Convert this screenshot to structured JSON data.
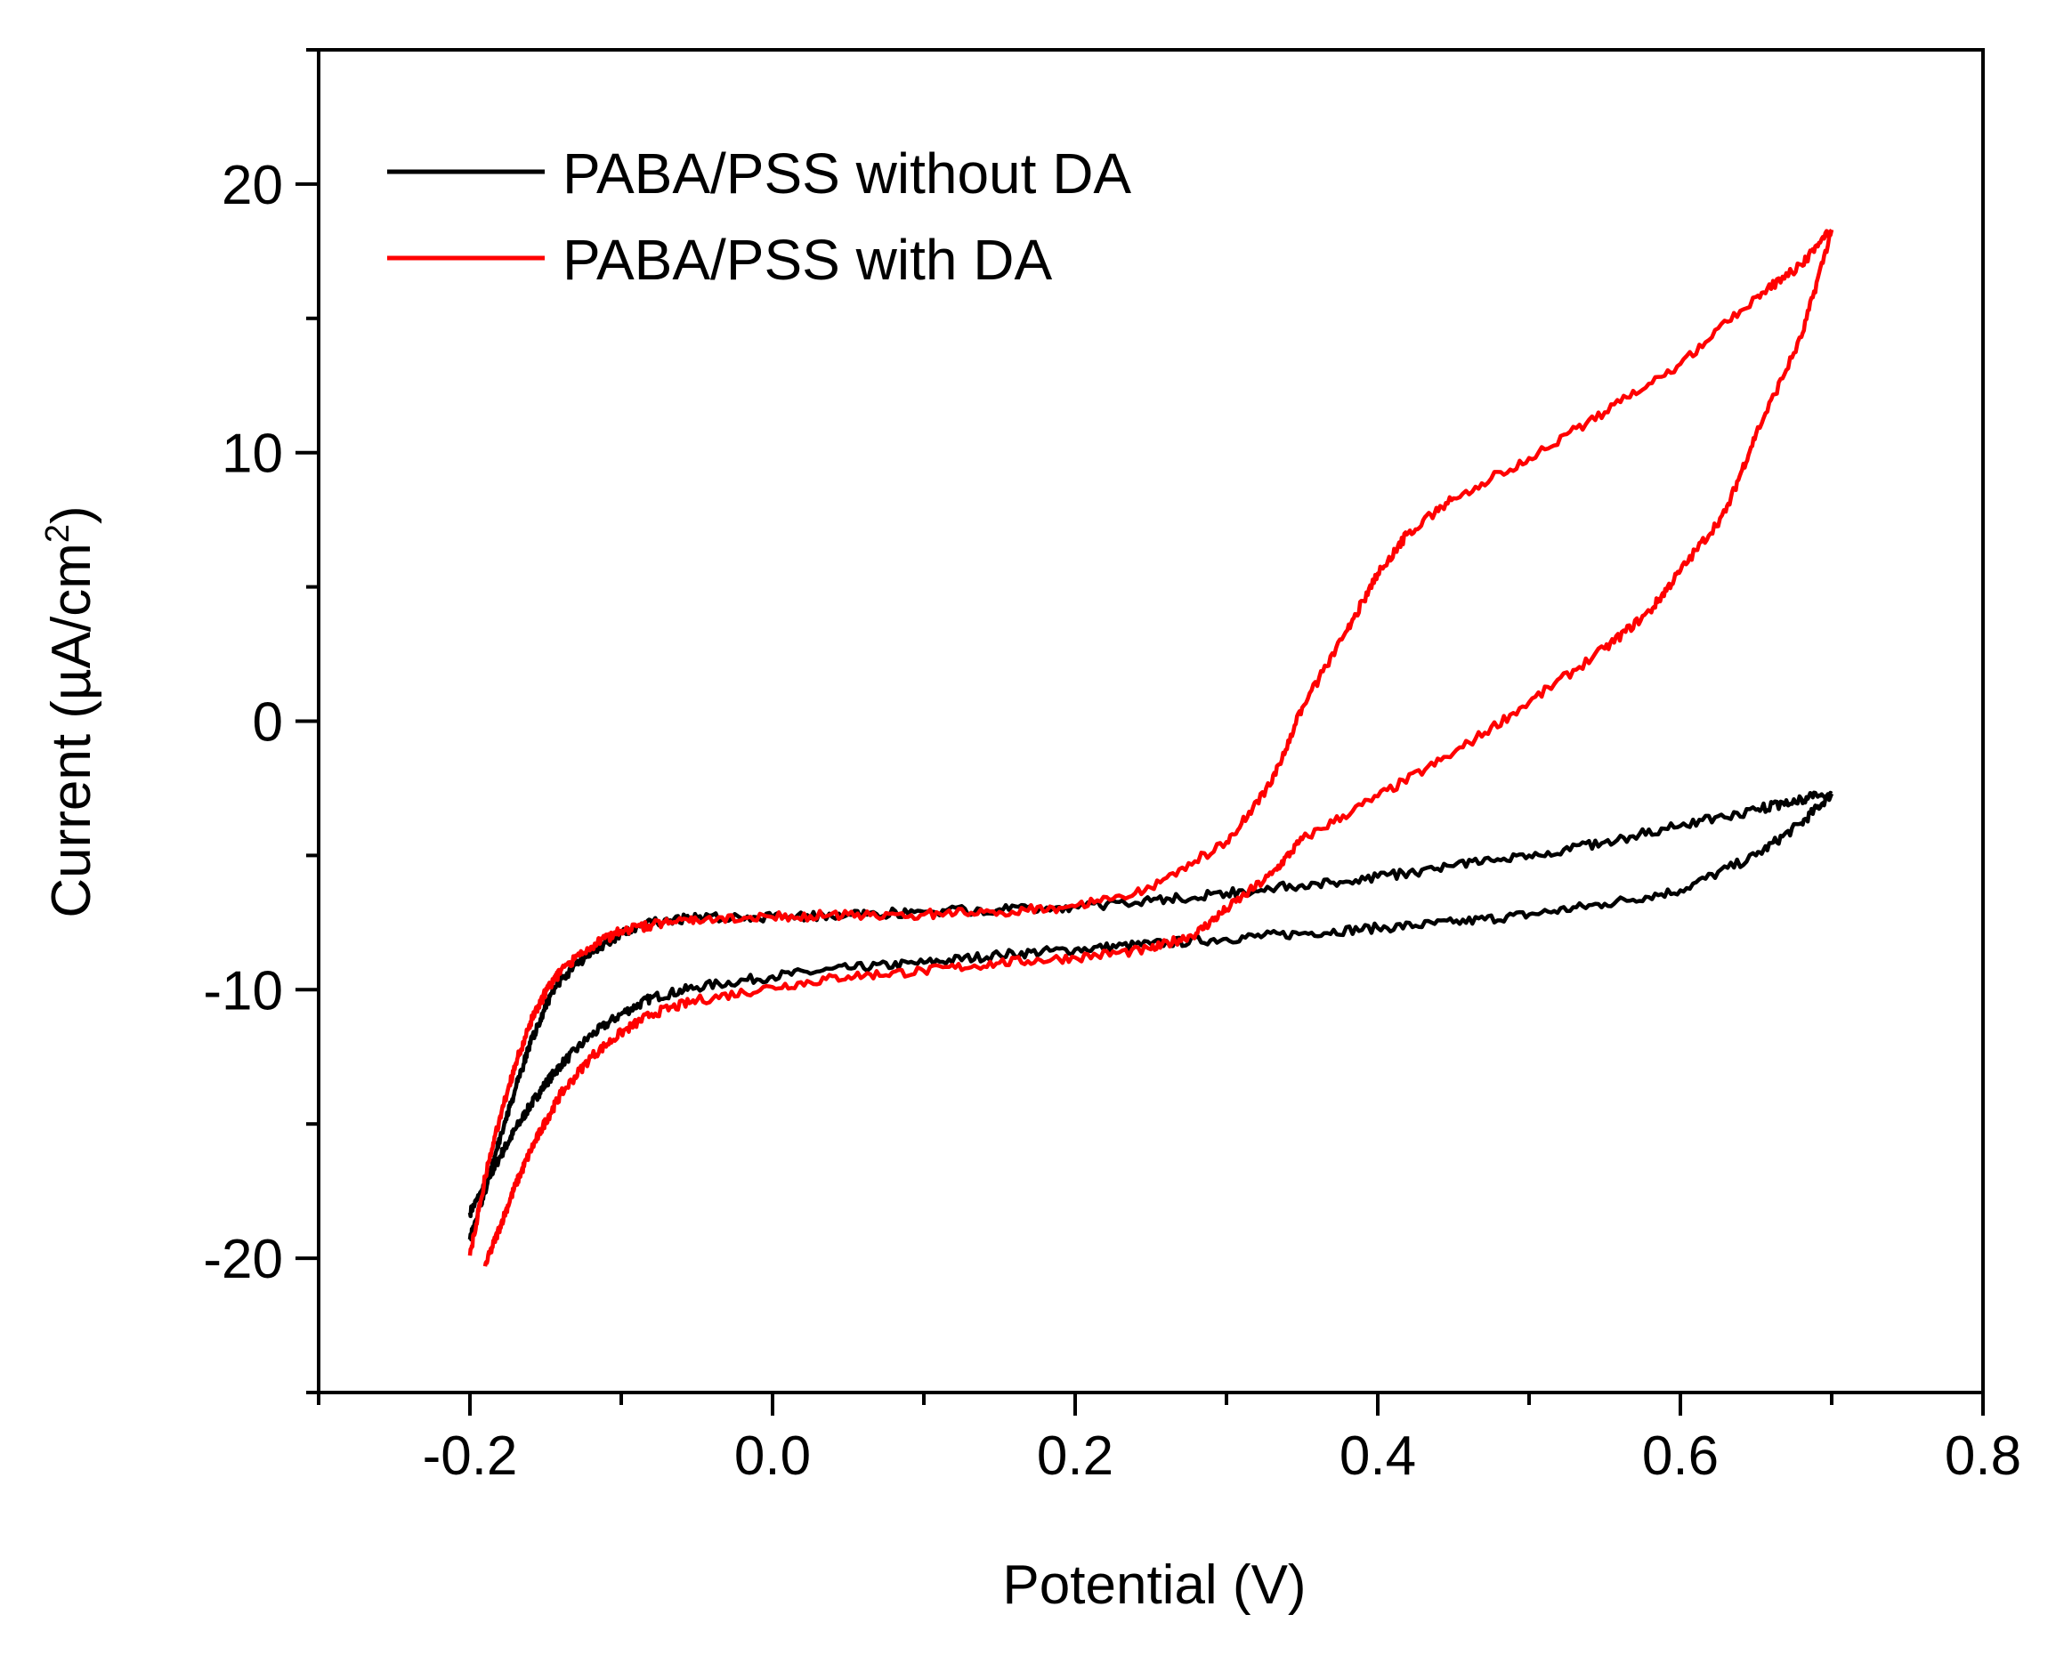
{
  "chart_data": {
    "type": "line",
    "title": "",
    "xlabel": "Potential (V)",
    "ylabel": "Current (µA/cm²)",
    "ylabel_base": "Current (µA/cm",
    "ylabel_sup": "2",
    "ylabel_tail": ")",
    "xlim": [
      -0.3,
      0.8
    ],
    "ylim": [
      -25,
      25
    ],
    "xticks": [
      -0.2,
      0.0,
      0.2,
      0.4,
      0.6,
      0.8
    ],
    "xtick_labels": [
      "-0.2",
      "0.0",
      "0.2",
      "0.4",
      "0.6",
      "0.8"
    ],
    "yticks": [
      -20,
      -10,
      0,
      10,
      20
    ],
    "ytick_labels": [
      "-20",
      "-10",
      "0",
      "10",
      "20"
    ],
    "x_minor_step": 0.1,
    "y_minor_step": 5,
    "grid": false,
    "legend_position": "top-left",
    "series": [
      {
        "name": "PABA/PSS without DA",
        "color": "#000000",
        "forward": {
          "x": [
            -0.2,
            -0.19,
            -0.18,
            -0.17,
            -0.16,
            -0.15,
            -0.14,
            -0.12,
            -0.1,
            -0.08,
            -0.05,
            0.0,
            0.05,
            0.1,
            0.15,
            0.2,
            0.25,
            0.3,
            0.35,
            0.4,
            0.45,
            0.5,
            0.55,
            0.6,
            0.65,
            0.68,
            0.7
          ],
          "y": [
            -18.3,
            -17.3,
            -16.2,
            -15.2,
            -14.3,
            -13.5,
            -12.8,
            -11.7,
            -10.9,
            -10.3,
            -9.9,
            -9.5,
            -9.2,
            -9.0,
            -8.7,
            -8.5,
            -8.3,
            -8.1,
            -7.9,
            -7.7,
            -7.5,
            -7.2,
            -6.8,
            -6.3,
            -5.0,
            -3.8,
            -2.7
          ]
        },
        "reverse": {
          "x": [
            0.7,
            0.68,
            0.65,
            0.6,
            0.55,
            0.5,
            0.45,
            0.4,
            0.35,
            0.3,
            0.25,
            0.2,
            0.15,
            0.1,
            0.05,
            0.0,
            -0.05,
            -0.08,
            -0.1,
            -0.12,
            -0.14,
            -0.15,
            -0.16,
            -0.17,
            -0.18,
            -0.19,
            -0.2
          ],
          "y": [
            -2.7,
            -2.9,
            -3.3,
            -3.9,
            -4.5,
            -5.0,
            -5.4,
            -5.8,
            -6.1,
            -6.4,
            -6.7,
            -6.9,
            -7.0,
            -7.1,
            -7.2,
            -7.3,
            -7.3,
            -7.5,
            -7.9,
            -8.6,
            -9.6,
            -10.6,
            -12.0,
            -13.7,
            -15.5,
            -17.5,
            -19.3
          ]
        }
      },
      {
        "name": "PABA/PSS with DA",
        "color": "#ff0000",
        "forward": {
          "x": [
            -0.19,
            -0.18,
            -0.17,
            -0.16,
            -0.15,
            -0.14,
            -0.12,
            -0.1,
            -0.08,
            -0.05,
            0.0,
            0.05,
            0.1,
            0.15,
            0.2,
            0.25,
            0.28,
            0.3,
            0.33,
            0.35,
            0.4,
            0.45,
            0.5,
            0.55,
            0.58,
            0.6,
            0.63,
            0.65,
            0.68,
            0.7
          ],
          "y": [
            -20.3,
            -18.8,
            -17.3,
            -16.0,
            -14.9,
            -13.9,
            -12.5,
            -11.6,
            -10.9,
            -10.4,
            -9.9,
            -9.5,
            -9.3,
            -9.0,
            -8.8,
            -8.5,
            -7.9,
            -7.0,
            -5.7,
            -4.4,
            -2.8,
            -1.2,
            0.7,
            2.7,
            4.1,
            5.6,
            7.8,
            10.7,
            14.3,
            18.3
          ]
        },
        "reverse": {
          "x": [
            0.7,
            0.68,
            0.65,
            0.6,
            0.55,
            0.5,
            0.45,
            0.42,
            0.4,
            0.38,
            0.35,
            0.33,
            0.3,
            0.25,
            0.2,
            0.15,
            0.1,
            0.05,
            0.0,
            -0.05,
            -0.08,
            -0.1,
            -0.12,
            -0.14,
            -0.15,
            -0.16,
            -0.17,
            -0.18,
            -0.19,
            -0.2
          ],
          "y": [
            18.3,
            17.0,
            15.8,
            13.3,
            11.5,
            9.8,
            8.3,
            7.0,
            5.5,
            3.4,
            0.5,
            -2.3,
            -4.5,
            -6.2,
            -6.9,
            -7.1,
            -7.2,
            -7.2,
            -7.3,
            -7.4,
            -7.6,
            -7.8,
            -8.4,
            -9.3,
            -10.1,
            -11.2,
            -12.8,
            -14.7,
            -17.0,
            -19.9
          ]
        }
      }
    ]
  }
}
